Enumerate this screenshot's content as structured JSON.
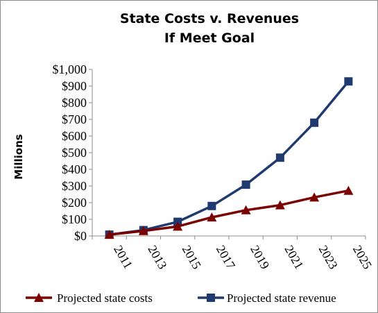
{
  "chart_data": {
    "type": "line",
    "title_lines": [
      "State Costs v. Revenues",
      "If Meet Goal"
    ],
    "xlabel": "",
    "ylabel": "Millions",
    "x": [
      "2011",
      "2013",
      "2015",
      "2017",
      "2019",
      "2021",
      "2023",
      "2025"
    ],
    "yticks": [
      "$0",
      "$100",
      "$200",
      "$300",
      "$400",
      "$500",
      "$600",
      "$700",
      "$800",
      "$900",
      "$1,000"
    ],
    "ylim": [
      0,
      1000
    ],
    "grid": false,
    "legend_position": "bottom",
    "series": [
      {
        "name": "Projected state costs",
        "color": "#7b0000",
        "marker": "triangle",
        "values": [
          8,
          30,
          57,
          112,
          155,
          185,
          232,
          272
        ]
      },
      {
        "name": "Projected state revenue",
        "color": "#1f3a6e",
        "marker": "square",
        "values": [
          8,
          35,
          85,
          180,
          308,
          470,
          680,
          928
        ]
      }
    ]
  }
}
